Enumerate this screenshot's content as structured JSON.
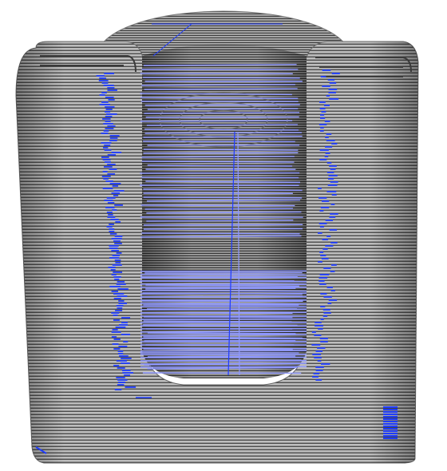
{
  "view": {
    "subject": "toolpath-preview",
    "colors": {
      "background": "#ffffff",
      "perimeter_light": "#c9c9c9",
      "perimeter_dark": "#4a4a4a",
      "shell_shade": "#9a9a9a",
      "travel_move": "#1f3cff",
      "travel_move_light": "#8f98ff"
    },
    "icons": [
      "model-shell",
      "cavity",
      "travel-moves"
    ]
  }
}
